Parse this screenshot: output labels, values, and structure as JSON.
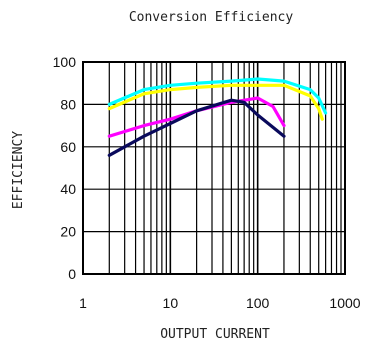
{
  "chart_data": {
    "type": "line",
    "title": "Conversion Efficiency",
    "xlabel": "OUTPUT CURRENT",
    "ylabel": "EFFICIENCY",
    "x_scale": "log",
    "xlim": [
      1,
      1000
    ],
    "ylim": [
      0,
      100
    ],
    "x_ticks": [
      1,
      10,
      100,
      1000
    ],
    "x_tick_labels": [
      "1",
      "10",
      "100",
      "1000"
    ],
    "y_ticks": [
      0,
      20,
      40,
      60,
      80,
      100
    ],
    "y_tick_labels": [
      "0",
      "20",
      "40",
      "60",
      "80",
      "100"
    ],
    "grid": true,
    "legend": "none",
    "series": [
      {
        "color": "#00FFFF",
        "points": [
          [
            2,
            80
          ],
          [
            5,
            87
          ],
          [
            10,
            89
          ],
          [
            20,
            90
          ],
          [
            50,
            91
          ],
          [
            100,
            92
          ],
          [
            200,
            91
          ],
          [
            400,
            87
          ],
          [
            500,
            83
          ],
          [
            600,
            76
          ]
        ]
      },
      {
        "color": "#FFFF00",
        "points": [
          [
            2,
            78
          ],
          [
            5,
            85
          ],
          [
            10,
            87
          ],
          [
            20,
            88
          ],
          [
            50,
            89
          ],
          [
            100,
            89
          ],
          [
            200,
            89
          ],
          [
            400,
            84
          ],
          [
            500,
            78
          ],
          [
            550,
            73
          ]
        ]
      },
      {
        "color": "#FF00FF",
        "points": [
          [
            2,
            65
          ],
          [
            5,
            70
          ],
          [
            10,
            73
          ],
          [
            20,
            77
          ],
          [
            50,
            81
          ],
          [
            100,
            83
          ],
          [
            150,
            79
          ],
          [
            200,
            70
          ]
        ]
      },
      {
        "color": "#0A0A5C",
        "points": [
          [
            2,
            56
          ],
          [
            5,
            65
          ],
          [
            10,
            71
          ],
          [
            20,
            77
          ],
          [
            50,
            82
          ],
          [
            70,
            81
          ],
          [
            100,
            75
          ],
          [
            200,
            65
          ]
        ]
      }
    ]
  }
}
